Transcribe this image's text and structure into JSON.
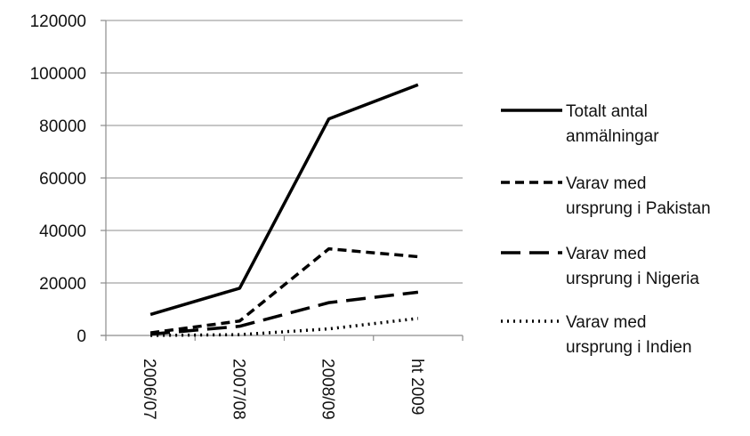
{
  "chart_data": {
    "type": "line",
    "title": "",
    "xlabel": "",
    "ylabel": "",
    "categories": [
      "2006/07",
      "2007/08",
      "2008/09",
      "ht 2009"
    ],
    "yticks": [
      "0",
      "20000",
      "40000",
      "60000",
      "80000",
      "100000",
      "120000"
    ],
    "ylim": [
      0,
      120000
    ],
    "grid": "horizontal",
    "legend_position": "right",
    "series": [
      {
        "name_lines": [
          "Totalt antal",
          "anmälningar"
        ],
        "dash": "solid",
        "values": [
          8000,
          18000,
          82500,
          95500
        ]
      },
      {
        "name_lines": [
          "Varav med",
          "ursprung i Pakistan"
        ],
        "dash": "short-dash",
        "values": [
          1000,
          5500,
          33000,
          30000
        ]
      },
      {
        "name_lines": [
          "Varav med",
          "ursprung i Nigeria"
        ],
        "dash": "long-dash",
        "values": [
          500,
          3500,
          12500,
          16500
        ]
      },
      {
        "name_lines": [
          "Varav med",
          "ursprung i Indien"
        ],
        "dash": "dotted",
        "values": [
          0,
          300,
          2500,
          6500
        ]
      }
    ]
  }
}
